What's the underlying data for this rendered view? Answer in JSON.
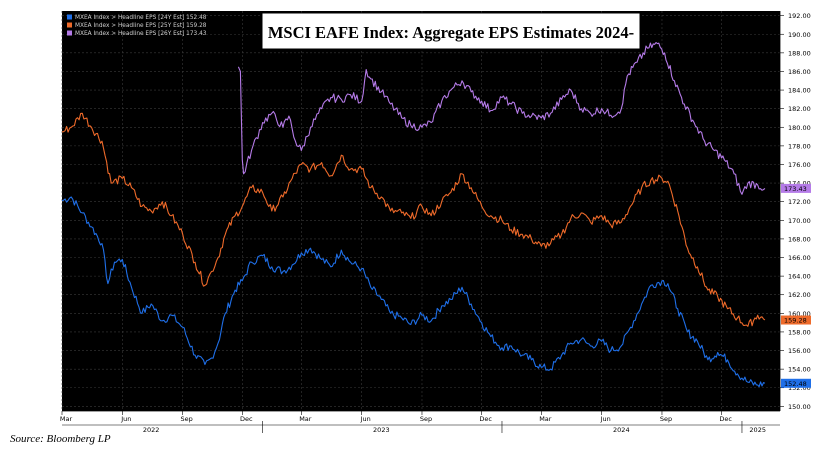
{
  "chart_data": {
    "type": "line",
    "title": "MSCI EAFE Index: Aggregate EPS Estimates 2024-",
    "xlabel": "",
    "ylabel": "",
    "x_range": [
      "2022-03-01",
      "2025-02-28"
    ],
    "ylim": [
      149.5,
      192.5
    ],
    "yticks": [
      150,
      152,
      154,
      156,
      158,
      160,
      162,
      164,
      166,
      168,
      170,
      172,
      174,
      176,
      178,
      180,
      182,
      184,
      186,
      188,
      190,
      192
    ],
    "ytick_labels": [
      "150.00",
      "152.00",
      "154.00",
      "156.00",
      "158.00",
      "160.00",
      "162.00",
      "164.00",
      "166.00",
      "168.00",
      "170.00",
      "172.00",
      "174.00",
      "176.00",
      "178.00",
      "180.00",
      "182.00",
      "184.00",
      "186.00",
      "188.00",
      "190.00",
      "192.00"
    ],
    "xticks": [
      {
        "date": "2022-03-01",
        "label": "Mar"
      },
      {
        "date": "2022-06-01",
        "label": "Jun"
      },
      {
        "date": "2022-09-01",
        "label": "Sep"
      },
      {
        "date": "2022-12-01",
        "label": "Dec"
      },
      {
        "date": "2023-03-01",
        "label": "Mar"
      },
      {
        "date": "2023-06-01",
        "label": "Jun"
      },
      {
        "date": "2023-09-01",
        "label": "Sep"
      },
      {
        "date": "2023-12-01",
        "label": "Dec"
      },
      {
        "date": "2024-03-01",
        "label": "Mar"
      },
      {
        "date": "2024-06-01",
        "label": "Jun"
      },
      {
        "date": "2024-09-01",
        "label": "Sep"
      },
      {
        "date": "2024-12-01",
        "label": "Dec"
      }
    ],
    "years": [
      {
        "date": "2022-07-15",
        "label": "2022"
      },
      {
        "date": "2023-07-01",
        "label": "2023"
      },
      {
        "date": "2024-07-01",
        "label": "2024"
      },
      {
        "date": "2025-01-25",
        "label": "2025"
      }
    ],
    "grid": true,
    "legend_position": "top-left",
    "series": [
      {
        "name": "MXEA Index > Headline EPS [24Y Est]",
        "legend_label": "MXEA Index > Headline EPS [24Y Est] 152.48",
        "last_value": 152.48,
        "last_label": "152.48",
        "color": "#1f6fe8",
        "points": [
          [
            "2022-03-01",
            172.1
          ],
          [
            "2022-03-15",
            172.5
          ],
          [
            "2022-04-01",
            170.8
          ],
          [
            "2022-04-15",
            169.3
          ],
          [
            "2022-05-01",
            167.5
          ],
          [
            "2022-05-10",
            163.2
          ],
          [
            "2022-05-20",
            165.5
          ],
          [
            "2022-06-01",
            165.8
          ],
          [
            "2022-06-15",
            162.8
          ],
          [
            "2022-07-01",
            160.0
          ],
          [
            "2022-07-15",
            161.0
          ],
          [
            "2022-08-01",
            159.2
          ],
          [
            "2022-08-15",
            159.8
          ],
          [
            "2022-09-01",
            158.5
          ],
          [
            "2022-09-20",
            155.5
          ],
          [
            "2022-10-05",
            154.5
          ],
          [
            "2022-10-15",
            155.2
          ],
          [
            "2022-10-25",
            156.8
          ],
          [
            "2022-11-05",
            160.0
          ],
          [
            "2022-11-20",
            162.5
          ],
          [
            "2022-12-01",
            163.5
          ],
          [
            "2022-12-15",
            165.5
          ],
          [
            "2023-01-01",
            166.2
          ],
          [
            "2023-01-15",
            165.0
          ],
          [
            "2023-02-01",
            164.5
          ],
          [
            "2023-02-15",
            165.2
          ],
          [
            "2023-03-01",
            166.5
          ],
          [
            "2023-03-15",
            167.0
          ],
          [
            "2023-04-01",
            165.8
          ],
          [
            "2023-04-15",
            165.0
          ],
          [
            "2023-05-01",
            166.8
          ],
          [
            "2023-05-15",
            165.5
          ],
          [
            "2023-06-01",
            164.8
          ],
          [
            "2023-06-15",
            162.8
          ],
          [
            "2023-07-01",
            161.5
          ],
          [
            "2023-07-15",
            160.0
          ],
          [
            "2023-08-01",
            159.5
          ],
          [
            "2023-08-15",
            158.8
          ],
          [
            "2023-09-01",
            159.8
          ],
          [
            "2023-09-15",
            159.2
          ],
          [
            "2023-10-01",
            160.8
          ],
          [
            "2023-10-15",
            161.5
          ],
          [
            "2023-11-01",
            162.8
          ],
          [
            "2023-11-15",
            161.0
          ],
          [
            "2023-12-01",
            159.0
          ],
          [
            "2023-12-15",
            157.5
          ],
          [
            "2024-01-01",
            156.3
          ],
          [
            "2024-01-15",
            156.5
          ],
          [
            "2024-02-01",
            155.5
          ],
          [
            "2024-02-15",
            155.0
          ],
          [
            "2024-03-01",
            154.2
          ],
          [
            "2024-03-15",
            154.0
          ],
          [
            "2024-04-01",
            155.5
          ],
          [
            "2024-04-15",
            156.8
          ],
          [
            "2024-05-01",
            157.2
          ],
          [
            "2024-05-15",
            156.5
          ],
          [
            "2024-06-01",
            157.0
          ],
          [
            "2024-06-15",
            156.0
          ],
          [
            "2024-07-01",
            156.5
          ],
          [
            "2024-07-15",
            158.5
          ],
          [
            "2024-08-01",
            161.0
          ],
          [
            "2024-08-15",
            163.0
          ],
          [
            "2024-09-01",
            163.5
          ],
          [
            "2024-09-10",
            163.2
          ],
          [
            "2024-09-25",
            160.5
          ],
          [
            "2024-10-10",
            158.0
          ],
          [
            "2024-10-25",
            157.0
          ],
          [
            "2024-11-10",
            155.0
          ],
          [
            "2024-11-25",
            155.8
          ],
          [
            "2024-12-10",
            155.0
          ],
          [
            "2024-12-25",
            153.5
          ],
          [
            "2025-01-10",
            152.6
          ],
          [
            "2025-01-25",
            152.3
          ],
          [
            "2025-02-05",
            152.48
          ]
        ]
      },
      {
        "name": "MXEA Index > Headline EPS [25Y Est]",
        "legend_label": "MXEA Index > Headline EPS [25Y Est] 159.28",
        "last_value": 159.28,
        "last_label": "159.28",
        "color": "#ee6a2a",
        "points": [
          [
            "2022-03-01",
            179.5
          ],
          [
            "2022-03-15",
            180.0
          ],
          [
            "2022-04-01",
            181.5
          ],
          [
            "2022-04-15",
            180.0
          ],
          [
            "2022-05-01",
            178.5
          ],
          [
            "2022-05-15",
            174.0
          ],
          [
            "2022-06-01",
            174.5
          ],
          [
            "2022-06-15",
            173.5
          ],
          [
            "2022-07-01",
            171.5
          ],
          [
            "2022-07-15",
            171.0
          ],
          [
            "2022-08-01",
            172.0
          ],
          [
            "2022-08-15",
            170.5
          ],
          [
            "2022-09-01",
            168.5
          ],
          [
            "2022-09-20",
            165.5
          ],
          [
            "2022-10-05",
            163.0
          ],
          [
            "2022-10-15",
            164.5
          ],
          [
            "2022-10-25",
            166.0
          ],
          [
            "2022-11-05",
            168.5
          ],
          [
            "2022-11-20",
            170.5
          ],
          [
            "2022-12-01",
            171.5
          ],
          [
            "2022-12-15",
            173.5
          ],
          [
            "2023-01-01",
            173.0
          ],
          [
            "2023-01-15",
            171.0
          ],
          [
            "2023-02-01",
            172.5
          ],
          [
            "2023-02-15",
            174.5
          ],
          [
            "2023-03-01",
            176.0
          ],
          [
            "2023-03-15",
            175.5
          ],
          [
            "2023-04-01",
            176.2
          ],
          [
            "2023-04-15",
            174.8
          ],
          [
            "2023-05-01",
            177.0
          ],
          [
            "2023-05-15",
            175.5
          ],
          [
            "2023-06-01",
            175.5
          ],
          [
            "2023-06-15",
            173.5
          ],
          [
            "2023-07-01",
            172.5
          ],
          [
            "2023-07-15",
            171.0
          ],
          [
            "2023-08-01",
            170.8
          ],
          [
            "2023-08-15",
            170.2
          ],
          [
            "2023-09-01",
            171.5
          ],
          [
            "2023-09-15",
            170.5
          ],
          [
            "2023-10-01",
            172.0
          ],
          [
            "2023-10-15",
            173.0
          ],
          [
            "2023-11-01",
            175.0
          ],
          [
            "2023-11-15",
            173.5
          ],
          [
            "2023-12-01",
            171.5
          ],
          [
            "2023-12-15",
            170.5
          ],
          [
            "2024-01-01",
            170.0
          ],
          [
            "2024-01-15",
            169.0
          ],
          [
            "2024-02-01",
            168.5
          ],
          [
            "2024-02-15",
            168.0
          ],
          [
            "2024-03-01",
            167.2
          ],
          [
            "2024-03-15",
            167.5
          ],
          [
            "2024-04-01",
            168.5
          ],
          [
            "2024-04-15",
            170.2
          ],
          [
            "2024-05-01",
            170.8
          ],
          [
            "2024-05-15",
            169.8
          ],
          [
            "2024-06-01",
            170.5
          ],
          [
            "2024-06-15",
            169.5
          ],
          [
            "2024-07-01",
            169.8
          ],
          [
            "2024-07-15",
            171.5
          ],
          [
            "2024-08-01",
            173.5
          ],
          [
            "2024-08-15",
            174.3
          ],
          [
            "2024-09-01",
            174.5
          ],
          [
            "2024-09-10",
            174.2
          ],
          [
            "2024-09-25",
            171.0
          ],
          [
            "2024-10-10",
            167.0
          ],
          [
            "2024-10-25",
            165.0
          ],
          [
            "2024-11-10",
            162.5
          ],
          [
            "2024-11-25",
            161.8
          ],
          [
            "2024-12-10",
            160.5
          ],
          [
            "2024-12-25",
            159.5
          ],
          [
            "2025-01-10",
            158.6
          ],
          [
            "2025-01-25",
            159.8
          ],
          [
            "2025-02-05",
            159.28
          ]
        ]
      },
      {
        "name": "MXEA Index > Headline EPS [26Y Est]",
        "legend_label": "MXEA Index > Headline EPS [26Y Est] 173.43",
        "last_value": 173.43,
        "last_label": "173.43",
        "color": "#b57be8",
        "points": [
          [
            "2022-11-25",
            186.5
          ],
          [
            "2022-11-28",
            186.0
          ],
          [
            "2022-12-01",
            176.5
          ],
          [
            "2022-12-03",
            175.0
          ],
          [
            "2022-12-15",
            177.5
          ],
          [
            "2023-01-01",
            180.5
          ],
          [
            "2023-01-15",
            181.5
          ],
          [
            "2023-02-01",
            180.0
          ],
          [
            "2023-02-10",
            181.2
          ],
          [
            "2023-02-20",
            178.5
          ],
          [
            "2023-03-01",
            177.5
          ],
          [
            "2023-03-15",
            180.0
          ],
          [
            "2023-04-01",
            182.0
          ],
          [
            "2023-04-15",
            183.2
          ],
          [
            "2023-05-01",
            183.0
          ],
          [
            "2023-05-15",
            183.5
          ],
          [
            "2023-06-01",
            182.8
          ],
          [
            "2023-06-08",
            186.2
          ],
          [
            "2023-06-15",
            185.2
          ],
          [
            "2023-07-01",
            183.8
          ],
          [
            "2023-07-15",
            182.5
          ],
          [
            "2023-08-01",
            181.0
          ],
          [
            "2023-08-15",
            180.2
          ],
          [
            "2023-09-01",
            180.0
          ],
          [
            "2023-09-15",
            180.5
          ],
          [
            "2023-10-01",
            182.8
          ],
          [
            "2023-10-15",
            184.0
          ],
          [
            "2023-11-01",
            185.0
          ],
          [
            "2023-11-15",
            183.8
          ],
          [
            "2023-12-01",
            182.8
          ],
          [
            "2023-12-15",
            181.8
          ],
          [
            "2024-01-01",
            183.2
          ],
          [
            "2024-01-15",
            182.5
          ],
          [
            "2024-02-01",
            181.5
          ],
          [
            "2024-02-15",
            181.2
          ],
          [
            "2024-03-01",
            181.0
          ],
          [
            "2024-03-15",
            181.5
          ],
          [
            "2024-04-01",
            183.0
          ],
          [
            "2024-04-15",
            184.0
          ],
          [
            "2024-05-01",
            182.0
          ],
          [
            "2024-05-15",
            181.5
          ],
          [
            "2024-06-01",
            182.0
          ],
          [
            "2024-06-15",
            181.3
          ],
          [
            "2024-07-01",
            182.0
          ],
          [
            "2024-07-10",
            185.5
          ],
          [
            "2024-07-25",
            187.0
          ],
          [
            "2024-08-10",
            188.5
          ],
          [
            "2024-08-25",
            189.0
          ],
          [
            "2024-09-05",
            188.0
          ],
          [
            "2024-09-20",
            185.0
          ],
          [
            "2024-10-05",
            182.5
          ],
          [
            "2024-10-20",
            180.5
          ],
          [
            "2024-11-05",
            178.5
          ],
          [
            "2024-11-20",
            177.5
          ],
          [
            "2024-12-05",
            176.5
          ],
          [
            "2024-12-20",
            175.0
          ],
          [
            "2025-01-01",
            172.8
          ],
          [
            "2025-01-10",
            174.0
          ],
          [
            "2025-01-25",
            173.8
          ],
          [
            "2025-02-05",
            173.43
          ]
        ]
      }
    ]
  },
  "source_note": "Source: Bloomberg LP"
}
